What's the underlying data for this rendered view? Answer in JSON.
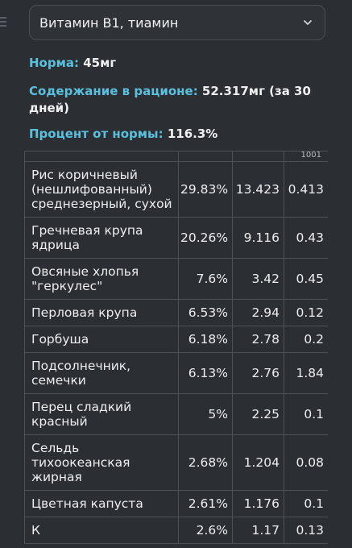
{
  "selector": {
    "value": "Витамин В1, тиамин"
  },
  "summary": {
    "norm_label": "Норма:",
    "norm_value": " 45мг",
    "content_label": "Содержание в рационе:",
    "content_value": " 52.317мг (за 30 дней)",
    "percent_label": "Процент от нормы:",
    "percent_value": " 116.3%"
  },
  "table": {
    "header_partial": "1001",
    "rows": [
      {
        "name": "Рис коричневый (нешлифованный) среднезерный, сухой",
        "percent": "29.83%",
        "amount": "13.423",
        "per100": "0.413"
      },
      {
        "name": "Гречневая крупа ядрица",
        "percent": "20.26%",
        "amount": "9.116",
        "per100": "0.43"
      },
      {
        "name": "Овсяные хлопья \"геркулес\"",
        "percent": "7.6%",
        "amount": "3.42",
        "per100": "0.45"
      },
      {
        "name": "Перловая крупа",
        "percent": "6.53%",
        "amount": "2.94",
        "per100": "0.12"
      },
      {
        "name": "Горбуша",
        "percent": "6.18%",
        "amount": "2.78",
        "per100": "0.2"
      },
      {
        "name": "Подсолнечник, семечки",
        "percent": "6.13%",
        "amount": "2.76",
        "per100": "1.84"
      },
      {
        "name": "Перец сладкий красный",
        "percent": "5%",
        "amount": "2.25",
        "per100": "0.1"
      },
      {
        "name": "Сельдь тихоокеанская жирная",
        "percent": "2.68%",
        "amount": "1.204",
        "per100": "0.08"
      },
      {
        "name": "Цветная капуста",
        "percent": "2.61%",
        "amount": "1.176",
        "per100": "0.1"
      },
      {
        "name": "К",
        "percent": "2.6%",
        "amount": "1.17",
        "per100": "0.13"
      }
    ]
  }
}
